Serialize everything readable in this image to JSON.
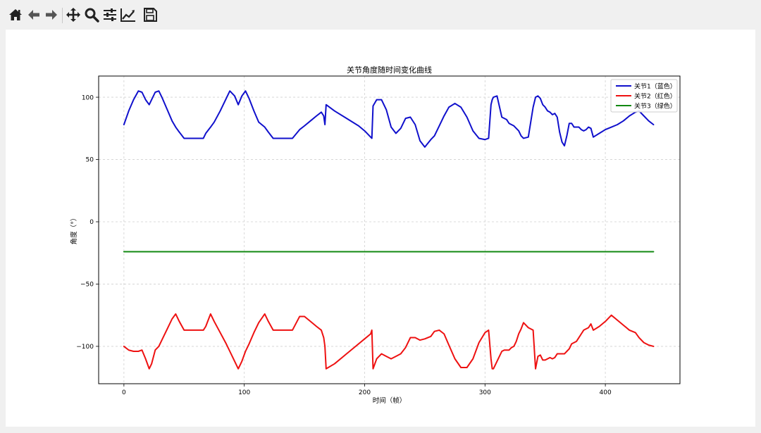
{
  "toolbar": {
    "buttons": [
      {
        "name": "home-icon"
      },
      {
        "name": "back-arrow-icon"
      },
      {
        "name": "forward-arrow-icon"
      },
      {
        "name": "pan-move-icon"
      },
      {
        "name": "zoom-magnifier-icon"
      },
      {
        "name": "configure-subplots-icon"
      },
      {
        "name": "edit-axis-line-icon"
      },
      {
        "name": "save-floppy-icon"
      }
    ]
  },
  "chart_data": {
    "type": "line",
    "title": "关节角度随时间变化曲线",
    "xlabel": "时间（帧）",
    "ylabel": "角度（°）",
    "xlim": [
      -21,
      462
    ],
    "ylim": [
      -130,
      117
    ],
    "xticks": [
      0,
      100,
      200,
      300,
      400
    ],
    "yticks": [
      -100,
      -50,
      0,
      50,
      100
    ],
    "grid": true,
    "legend_position": "top-right",
    "series": [
      {
        "name": "关节1（蓝色）",
        "color": "#1010cc",
        "x": [
          0,
          4,
          8,
          12,
          15,
          18,
          21,
          23,
          26,
          29,
          32,
          36,
          40,
          43,
          46,
          50,
          55,
          60,
          66,
          68,
          72,
          75,
          80,
          85,
          88,
          92,
          95,
          98,
          101,
          104,
          108,
          112,
          117,
          120,
          124,
          128,
          134,
          140,
          146,
          150,
          155,
          160,
          164,
          166,
          167,
          168,
          175,
          185,
          195,
          200,
          205,
          206,
          207,
          210,
          214,
          218,
          222,
          226,
          230,
          234,
          238,
          242,
          246,
          250,
          255,
          258,
          262,
          266,
          270,
          275,
          280,
          285,
          290,
          295,
          300,
          303,
          305,
          306,
          307,
          310,
          314,
          316,
          318,
          320,
          322,
          324,
          326,
          328,
          330,
          332,
          336,
          340,
          342,
          344,
          346,
          348,
          350,
          352,
          354,
          356,
          358,
          360,
          362,
          364,
          366,
          368,
          370,
          372,
          374,
          376,
          378,
          380,
          382,
          384,
          386,
          388,
          390,
          395,
          400,
          405,
          410,
          415,
          420,
          425,
          428,
          432,
          436,
          440
        ],
        "y": [
          78,
          89,
          98,
          105,
          104,
          98,
          94,
          98,
          104,
          105,
          99,
          90,
          81,
          76,
          72,
          67,
          67,
          67,
          67,
          71,
          76,
          80,
          89,
          99,
          105,
          101,
          94,
          101,
          105,
          99,
          89,
          80,
          76,
          72,
          67,
          67,
          67,
          67,
          74,
          77,
          81,
          85,
          88,
          85,
          78,
          94,
          89,
          83,
          77,
          73,
          68,
          67,
          93,
          98,
          98,
          90,
          76,
          71,
          75,
          83,
          84,
          78,
          65,
          60,
          66,
          69,
          77,
          85,
          92,
          95,
          92,
          84,
          73,
          67,
          66,
          67,
          94,
          98,
          100,
          101,
          84,
          83,
          82,
          79,
          78,
          77,
          75,
          73,
          69,
          67,
          68,
          92,
          100,
          101,
          99,
          94,
          92,
          89,
          88,
          86,
          87,
          84,
          72,
          64,
          61,
          69,
          79,
          79,
          76,
          76,
          76,
          74,
          73,
          74,
          76,
          75,
          68,
          71,
          74,
          76,
          78,
          81,
          85,
          88,
          89,
          85,
          81,
          78
        ]
      },
      {
        "name": "关节2（红色）",
        "color": "#ee1111",
        "x": [
          0,
          4,
          8,
          12,
          15,
          18,
          21,
          23,
          26,
          29,
          32,
          36,
          40,
          43,
          46,
          50,
          55,
          60,
          66,
          68,
          72,
          75,
          80,
          85,
          88,
          92,
          95,
          98,
          101,
          104,
          108,
          112,
          117,
          120,
          124,
          128,
          134,
          140,
          146,
          150,
          155,
          160,
          164,
          166,
          167,
          168,
          175,
          185,
          195,
          200,
          205,
          206,
          207,
          210,
          214,
          218,
          222,
          226,
          230,
          234,
          238,
          242,
          246,
          250,
          255,
          258,
          262,
          266,
          270,
          275,
          280,
          285,
          290,
          295,
          300,
          303,
          305,
          306,
          307,
          310,
          314,
          316,
          318,
          320,
          322,
          324,
          326,
          328,
          330,
          332,
          336,
          340,
          342,
          344,
          346,
          348,
          350,
          352,
          354,
          356,
          358,
          360,
          362,
          364,
          366,
          368,
          370,
          372,
          374,
          376,
          378,
          380,
          382,
          384,
          386,
          388,
          390,
          395,
          400,
          405,
          410,
          415,
          420,
          425,
          428,
          432,
          436,
          440
        ],
        "y": [
          -100,
          -103,
          -104,
          -104,
          -103,
          -110,
          -118,
          -114,
          -103,
          -100,
          -94,
          -86,
          -78,
          -74,
          -80,
          -87,
          -87,
          -87,
          -87,
          -84,
          -74,
          -80,
          -89,
          -98,
          -104,
          -112,
          -118,
          -112,
          -104,
          -98,
          -89,
          -81,
          -74,
          -80,
          -87,
          -87,
          -87,
          -87,
          -76,
          -76,
          -80,
          -84,
          -87,
          -93,
          -100,
          -118,
          -114,
          -106,
          -98,
          -94,
          -90,
          -87,
          -118,
          -110,
          -106,
          -108,
          -110,
          -108,
          -106,
          -101,
          -93,
          -93,
          -95,
          -94,
          -92,
          -88,
          -87,
          -90,
          -99,
          -110,
          -117,
          -117,
          -110,
          -97,
          -89,
          -87,
          -110,
          -118,
          -118,
          -112,
          -104,
          -103,
          -103,
          -103,
          -101,
          -100,
          -96,
          -90,
          -86,
          -81,
          -85,
          -87,
          -118,
          -108,
          -107,
          -111,
          -111,
          -110,
          -109,
          -110,
          -109,
          -106,
          -106,
          -106,
          -106,
          -104,
          -102,
          -98,
          -97,
          -96,
          -93,
          -90,
          -87,
          -86,
          -85,
          -82,
          -87,
          -84,
          -80,
          -75,
          -79,
          -83,
          -87,
          -89,
          -93,
          -97,
          -99,
          -100
        ]
      },
      {
        "name": "关节3（绿色）",
        "color": "#118811",
        "x": [
          0,
          440
        ],
        "y": [
          -24,
          -24
        ]
      }
    ]
  }
}
